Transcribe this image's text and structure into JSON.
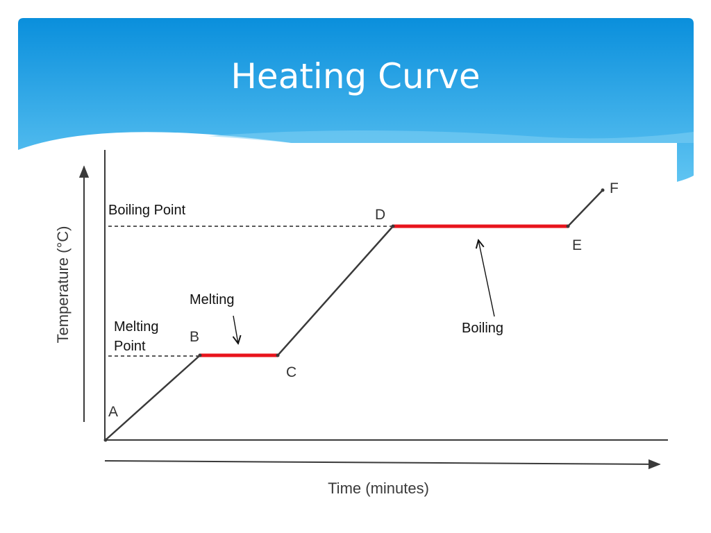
{
  "slide": {
    "title": "Heating Curve",
    "colors": {
      "header_top": "#0a8fdc",
      "header_bottom": "#5fc4f2",
      "plateau": "#e8141c",
      "curve": "#3a3a3a"
    }
  },
  "chart_data": {
    "type": "line",
    "xlabel": "Time (minutes)",
    "ylabel": "Temperature (°C)",
    "x_ticks": [],
    "y_ticks": [],
    "grid": false,
    "points": [
      {
        "label": "A"
      },
      {
        "label": "B"
      },
      {
        "label": "C"
      },
      {
        "label": "D"
      },
      {
        "label": "E"
      },
      {
        "label": "F"
      }
    ],
    "reference_lines": [
      {
        "label": "Boiling Point"
      },
      {
        "label": "Melting Point"
      }
    ],
    "phase_annotations": [
      {
        "label": "Melting"
      },
      {
        "label": "Boiling"
      }
    ]
  }
}
